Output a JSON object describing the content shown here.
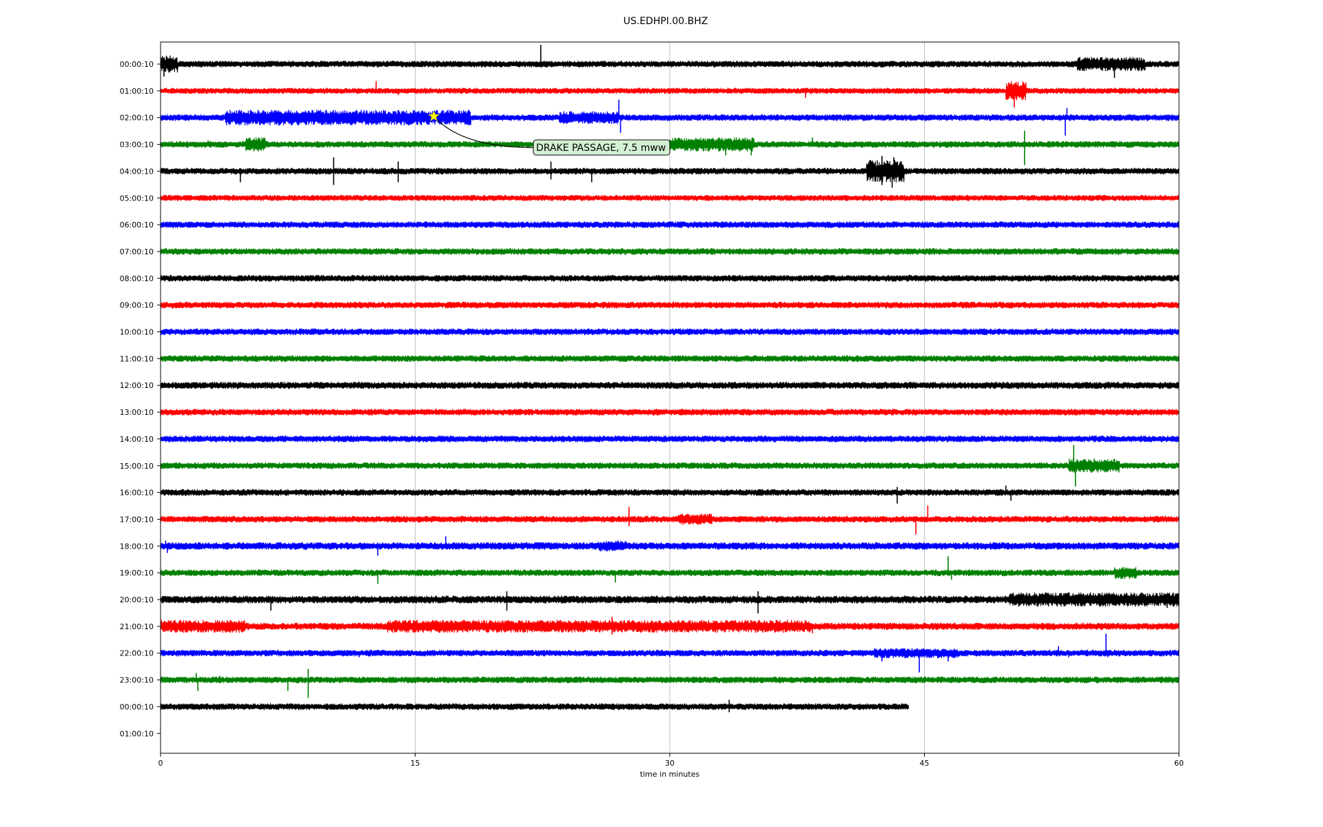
{
  "chart_data": {
    "type": "line",
    "title": "US.EDHPI.00.BHZ",
    "xlabel": "time in minutes",
    "ylabel": "",
    "xlim": [
      0,
      60
    ],
    "xticks": [
      0,
      15,
      30,
      45,
      60
    ],
    "vertical_grid": true,
    "row_labels": [
      "00:00:10",
      "01:00:10",
      "02:00:10",
      "03:00:10",
      "04:00:10",
      "05:00:10",
      "06:00:10",
      "07:00:10",
      "08:00:10",
      "09:00:10",
      "10:00:10",
      "11:00:10",
      "12:00:10",
      "13:00:10",
      "14:00:10",
      "15:00:10",
      "16:00:10",
      "17:00:10",
      "18:00:10",
      "19:00:10",
      "20:00:10",
      "21:00:10",
      "22:00:10",
      "23:00:10",
      "00:00:10",
      "01:00:10"
    ],
    "colors": [
      "#000000",
      "#ff0000",
      "#0000ff",
      "#008000"
    ],
    "rows": [
      {
        "start": 0,
        "end": 60,
        "noise": 0.22,
        "segments": [
          [
            0,
            1,
            0.6
          ],
          [
            54,
            58,
            0.5
          ]
        ],
        "spikes": [
          [
            0.2,
            -0.9
          ],
          [
            22.4,
            1.4
          ],
          [
            56.2,
            -1.0
          ],
          [
            57.3,
            0.4
          ]
        ]
      },
      {
        "start": 0,
        "end": 60,
        "noise": 0.2,
        "segments": [
          [
            49.8,
            51,
            0.7
          ]
        ],
        "spikes": [
          [
            12.7,
            0.7
          ],
          [
            14,
            -0.3
          ],
          [
            38,
            -0.5
          ],
          [
            50.3,
            -1.2
          ],
          [
            50.8,
            0.6
          ]
        ]
      },
      {
        "start": 0,
        "end": 60,
        "noise": 0.22,
        "segments": [
          [
            3.8,
            18.3,
            0.55
          ],
          [
            23.5,
            27,
            0.45
          ]
        ],
        "spikes": [
          [
            27,
            1.3
          ],
          [
            27.1,
            -1.1
          ],
          [
            53.4,
            0.7
          ],
          [
            53.3,
            -1.3
          ]
        ]
      },
      {
        "start": 0,
        "end": 60,
        "noise": 0.22,
        "segments": [
          [
            5,
            6.2,
            0.5
          ],
          [
            30,
            35,
            0.5
          ]
        ],
        "spikes": [
          [
            2.8,
            0.3
          ],
          [
            33.3,
            -0.8
          ],
          [
            34.8,
            -0.8
          ],
          [
            38.4,
            0.5
          ],
          [
            50.9,
            1.0
          ],
          [
            50.9,
            -1.5
          ]
        ]
      },
      {
        "start": 0,
        "end": 60,
        "noise": 0.22,
        "segments": [
          [
            41.6,
            43.8,
            0.8
          ]
        ],
        "spikes": [
          [
            4.7,
            -0.8
          ],
          [
            10.2,
            1.0
          ],
          [
            10.2,
            -1.0
          ],
          [
            14,
            0.7
          ],
          [
            14,
            -0.8
          ],
          [
            23,
            0.7
          ],
          [
            23,
            -0.6
          ],
          [
            25.4,
            -0.8
          ],
          [
            42.5,
            1.1
          ],
          [
            42.5,
            -1.0
          ],
          [
            43.1,
            -1.2
          ],
          [
            43.2,
            1.0
          ]
        ]
      },
      {
        "start": 0,
        "end": 60,
        "noise": 0.2,
        "segments": [],
        "spikes": []
      },
      {
        "start": 0,
        "end": 60,
        "noise": 0.22,
        "segments": [],
        "spikes": []
      },
      {
        "start": 0,
        "end": 60,
        "noise": 0.22,
        "segments": [],
        "spikes": []
      },
      {
        "start": 0,
        "end": 60,
        "noise": 0.22,
        "segments": [],
        "spikes": []
      },
      {
        "start": 0,
        "end": 60,
        "noise": 0.22,
        "segments": [],
        "spikes": []
      },
      {
        "start": 0,
        "end": 60,
        "noise": 0.22,
        "segments": [],
        "spikes": []
      },
      {
        "start": 0,
        "end": 60,
        "noise": 0.22,
        "segments": [],
        "spikes": []
      },
      {
        "start": 0,
        "end": 60,
        "noise": 0.24,
        "segments": [],
        "spikes": []
      },
      {
        "start": 0,
        "end": 60,
        "noise": 0.22,
        "segments": [],
        "spikes": []
      },
      {
        "start": 0,
        "end": 60,
        "noise": 0.22,
        "segments": [],
        "spikes": []
      },
      {
        "start": 0,
        "end": 60,
        "noise": 0.22,
        "segments": [
          [
            53.5,
            56.5,
            0.5
          ]
        ],
        "spikes": [
          [
            53.8,
            1.5
          ],
          [
            53.9,
            -1.5
          ],
          [
            55,
            0.5
          ]
        ]
      },
      {
        "start": 0,
        "end": 60,
        "noise": 0.22,
        "segments": [],
        "spikes": [
          [
            43.4,
            0.4
          ],
          [
            43.4,
            -0.8
          ],
          [
            49.8,
            0.5
          ],
          [
            50.1,
            -0.6
          ]
        ]
      },
      {
        "start": 0,
        "end": 60,
        "noise": 0.22,
        "segments": [
          [
            30.5,
            32.5,
            0.4
          ]
        ],
        "spikes": [
          [
            27.6,
            0.9
          ],
          [
            27.6,
            -0.5
          ],
          [
            44.5,
            -1.1
          ],
          [
            45.2,
            1.0
          ]
        ]
      },
      {
        "start": 0,
        "end": 60,
        "noise": 0.25,
        "segments": [
          [
            25.8,
            27.5,
            0.4
          ]
        ],
        "spikes": [
          [
            0.3,
            0.4
          ],
          [
            0.4,
            -0.5
          ],
          [
            12.8,
            -0.7
          ],
          [
            16.8,
            0.7
          ]
        ]
      },
      {
        "start": 0,
        "end": 60,
        "noise": 0.22,
        "segments": [
          [
            56.2,
            57.5,
            0.45
          ]
        ],
        "spikes": [
          [
            12.8,
            -0.8
          ],
          [
            26.8,
            -0.7
          ],
          [
            46.4,
            1.2
          ],
          [
            46.6,
            -0.5
          ]
        ]
      },
      {
        "start": 0,
        "end": 60,
        "noise": 0.26,
        "segments": [
          [
            50,
            60,
            0.5
          ]
        ],
        "spikes": [
          [
            6.5,
            -0.8
          ],
          [
            20.4,
            0.6
          ],
          [
            20.4,
            -0.8
          ],
          [
            35.2,
            0.6
          ],
          [
            35.2,
            -1.0
          ],
          [
            59.3,
            -0.6
          ]
        ]
      },
      {
        "start": 0,
        "end": 60,
        "noise": 0.24,
        "segments": [
          [
            0,
            5,
            0.45
          ],
          [
            13.3,
            38.3,
            0.45
          ]
        ],
        "spikes": [
          [
            26.6,
            0.7
          ],
          [
            26.6,
            -0.6
          ],
          [
            38.4,
            -0.5
          ]
        ]
      },
      {
        "start": 0,
        "end": 60,
        "noise": 0.22,
        "segments": [
          [
            42,
            47,
            0.35
          ]
        ],
        "spikes": [
          [
            11.7,
            -0.3
          ],
          [
            30,
            -0.3
          ],
          [
            42.5,
            -0.6
          ],
          [
            44.7,
            -1.4
          ],
          [
            46.4,
            -0.6
          ],
          [
            52.9,
            0.5
          ],
          [
            53.5,
            -0.3
          ],
          [
            55.7,
            1.4
          ],
          [
            55.8,
            -0.3
          ]
        ]
      },
      {
        "start": 0,
        "end": 60,
        "noise": 0.22,
        "segments": [],
        "spikes": [
          [
            2.1,
            0.5
          ],
          [
            2.2,
            -0.8
          ],
          [
            3.5,
            0.3
          ],
          [
            7.5,
            -0.8
          ],
          [
            8.7,
            0.8
          ],
          [
            8.7,
            -1.3
          ]
        ]
      },
      {
        "start": 0,
        "end": 44.1,
        "noise": 0.22,
        "segments": [],
        "spikes": [
          [
            33.5,
            0.5
          ],
          [
            33.5,
            -0.4
          ]
        ]
      },
      {
        "start": 0,
        "end": 0,
        "noise": 0,
        "segments": [],
        "spikes": []
      }
    ],
    "event": {
      "label": "DRAKE PASSAGE, 7.5 mww",
      "row": 2,
      "x": 16.1,
      "marker": "star",
      "marker_color": "#ffff00",
      "box_color": "#d4f0d4"
    }
  }
}
